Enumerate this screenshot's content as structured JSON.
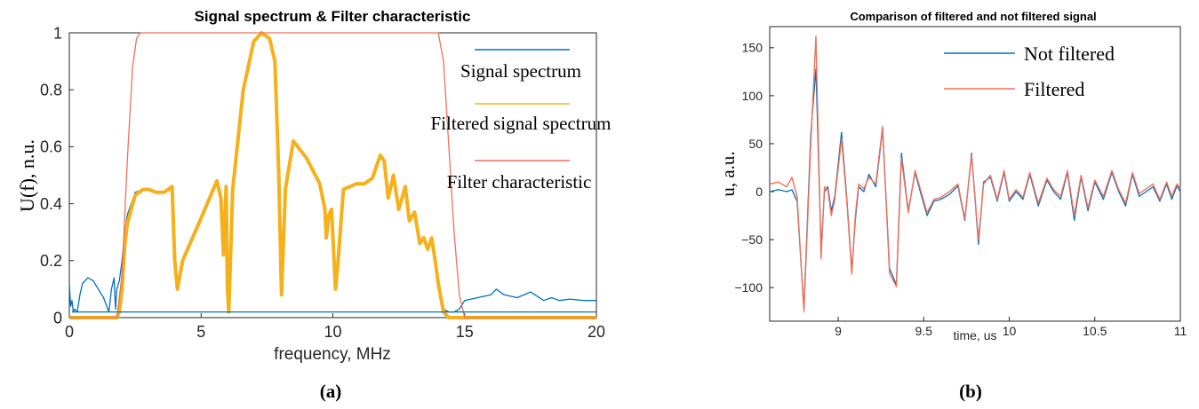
{
  "chart_data": [
    {
      "type": "line",
      "panel_label": "(a)",
      "title": "Signal spectrum & Filter characteristic",
      "xlabel": "frequency, MHz",
      "ylabel": "U(f), n.u.",
      "xlim": [
        0,
        20
      ],
      "ylim": [
        0,
        1
      ],
      "xticks": [
        0,
        5,
        10,
        15,
        20
      ],
      "yticks": [
        0,
        0.2,
        0.4,
        0.6,
        0.8,
        1
      ],
      "ytick_labels": [
        "0",
        "0.2",
        "0.4",
        "0.6",
        "0.8",
        "1"
      ],
      "grid": false,
      "legend_position": "right",
      "colors": {
        "Signal spectrum": "#0072bd",
        "Filtered signal spectrum": "#f5b01a",
        "Filter characteristic": "#f0705a"
      },
      "series": [
        {
          "name": "Signal spectrum",
          "x": [
            0,
            0.05,
            0.1,
            0.15,
            0.2,
            0.3,
            0.4,
            0.5,
            0.7,
            0.9,
            1.1,
            1.3,
            1.5,
            1.6,
            1.7,
            1.75,
            1.8,
            1.9,
            2.0,
            2.1,
            2.2,
            2.5,
            2.8,
            3.0,
            3.3,
            3.6,
            3.9,
            4.0,
            4.1,
            4.3,
            5.0,
            5.6,
            5.75,
            5.85,
            5.95,
            6.0,
            6.05,
            6.2,
            6.6,
            7.0,
            7.3,
            7.6,
            7.8,
            7.95,
            8.05,
            8.2,
            8.5,
            9.0,
            9.5,
            9.7,
            9.75,
            9.85,
            9.95,
            10.1,
            10.2,
            10.4,
            10.9,
            11.2,
            11.5,
            11.8,
            11.95,
            12.1,
            12.3,
            12.5,
            12.75,
            12.9,
            13.1,
            13.3,
            13.45,
            13.6,
            13.75,
            13.9,
            14.0,
            14.2,
            14.4,
            14.6,
            14.8,
            15.0,
            15.5,
            16.0,
            16.2,
            16.5,
            17.0,
            17.5,
            18.0,
            18.3,
            18.6,
            19.0,
            19.5,
            20.0
          ],
          "y": [
            0.12,
            0.04,
            0.06,
            0.02,
            0.03,
            0.02,
            0.08,
            0.12,
            0.14,
            0.13,
            0.1,
            0.07,
            0.02,
            0.1,
            0.14,
            0.03,
            0.1,
            0.13,
            0.2,
            0.3,
            0.36,
            0.44,
            0.45,
            0.45,
            0.44,
            0.44,
            0.46,
            0.2,
            0.1,
            0.2,
            0.35,
            0.48,
            0.42,
            0.22,
            0.46,
            0.1,
            0.02,
            0.45,
            0.8,
            0.97,
            1.0,
            0.98,
            0.9,
            0.5,
            0.08,
            0.45,
            0.62,
            0.56,
            0.47,
            0.38,
            0.28,
            0.36,
            0.38,
            0.1,
            0.2,
            0.45,
            0.47,
            0.47,
            0.49,
            0.57,
            0.55,
            0.42,
            0.5,
            0.38,
            0.46,
            0.34,
            0.37,
            0.26,
            0.28,
            0.24,
            0.28,
            0.19,
            0.12,
            0.03,
            0.02,
            0.02,
            0.03,
            0.06,
            0.07,
            0.08,
            0.1,
            0.08,
            0.07,
            0.09,
            0.06,
            0.07,
            0.06,
            0.065,
            0.06,
            0.06
          ]
        },
        {
          "name": "Filtered signal spectrum",
          "x": [
            0,
            1.6,
            1.8,
            1.9,
            2.0,
            2.1,
            2.2,
            2.5,
            2.8,
            3.0,
            3.3,
            3.6,
            3.9,
            4.0,
            4.1,
            4.3,
            5.0,
            5.6,
            5.75,
            5.85,
            5.95,
            6.0,
            6.05,
            6.2,
            6.6,
            7.0,
            7.3,
            7.6,
            7.8,
            7.95,
            8.05,
            8.2,
            8.5,
            9.0,
            9.5,
            9.7,
            9.75,
            9.85,
            9.95,
            10.1,
            10.2,
            10.4,
            10.9,
            11.2,
            11.5,
            11.8,
            11.95,
            12.1,
            12.3,
            12.5,
            12.75,
            12.9,
            13.1,
            13.3,
            13.45,
            13.6,
            13.75,
            13.9,
            14.0,
            14.2,
            14.4,
            20.0
          ],
          "y": [
            0.0,
            0.0,
            0.0,
            0.02,
            0.1,
            0.25,
            0.33,
            0.43,
            0.45,
            0.45,
            0.44,
            0.44,
            0.46,
            0.2,
            0.1,
            0.2,
            0.35,
            0.48,
            0.42,
            0.22,
            0.46,
            0.1,
            0.02,
            0.45,
            0.8,
            0.97,
            1.0,
            0.98,
            0.9,
            0.5,
            0.08,
            0.45,
            0.62,
            0.56,
            0.47,
            0.38,
            0.28,
            0.36,
            0.38,
            0.1,
            0.2,
            0.45,
            0.47,
            0.47,
            0.49,
            0.57,
            0.55,
            0.42,
            0.5,
            0.38,
            0.46,
            0.34,
            0.37,
            0.26,
            0.28,
            0.24,
            0.28,
            0.19,
            0.12,
            0.02,
            0.0,
            0.0
          ]
        },
        {
          "name": "Filter characteristic",
          "x": [
            0,
            1.8,
            2.0,
            2.2,
            2.4,
            2.55,
            2.7,
            14.0,
            14.2,
            14.4,
            14.6,
            14.8,
            15.0,
            20.0
          ],
          "y": [
            0,
            0,
            0.15,
            0.55,
            0.88,
            0.98,
            1.0,
            1.0,
            0.9,
            0.6,
            0.3,
            0.08,
            0,
            0
          ]
        },
        {
          "name": "Signal spectrum baseline",
          "x": [
            0.1,
            20.0
          ],
          "y": [
            0.02,
            0.02
          ]
        }
      ]
    },
    {
      "type": "line",
      "panel_label": "(b)",
      "title": "Comparison of filtered and not filtered signal",
      "xlabel": "time, us",
      "ylabel": "u, a.u.",
      "xlim": [
        8.6,
        11
      ],
      "ylim": [
        -135,
        172
      ],
      "xticks": [
        9,
        9.5,
        10,
        10.5,
        11
      ],
      "yticks": [
        -100,
        -50,
        0,
        50,
        100,
        150
      ],
      "ytick_labels": [
        "−100",
        "−50",
        "0",
        "50",
        "100",
        "150"
      ],
      "grid": false,
      "legend_position": "top-right",
      "colors": {
        "Not filtered": "#0072bd",
        "Filtered": "#f0705a"
      },
      "series": [
        {
          "name": "Not filtered",
          "x": [
            8.6,
            8.65,
            8.7,
            8.73,
            8.76,
            8.8,
            8.84,
            8.87,
            8.9,
            8.92,
            8.94,
            8.96,
            8.98,
            9.02,
            9.05,
            9.08,
            9.1,
            9.12,
            9.15,
            9.18,
            9.22,
            9.26,
            9.3,
            9.34,
            9.37,
            9.41,
            9.45,
            9.48,
            9.52,
            9.56,
            9.6,
            9.65,
            9.7,
            9.74,
            9.78,
            9.82,
            9.85,
            9.89,
            9.93,
            9.97,
            10.0,
            10.04,
            10.08,
            10.12,
            10.17,
            10.22,
            10.26,
            10.3,
            10.34,
            10.38,
            10.42,
            10.46,
            10.5,
            10.55,
            10.6,
            10.64,
            10.68,
            10.72,
            10.76,
            10.8,
            10.84,
            10.88,
            10.92,
            10.95,
            10.98,
            11.0
          ],
          "y": [
            0,
            2,
            0,
            2,
            -10,
            -122,
            60,
            128,
            -60,
            0,
            5,
            -20,
            -5,
            62,
            -5,
            -82,
            -30,
            5,
            0,
            18,
            5,
            65,
            -80,
            -97,
            40,
            -20,
            20,
            0,
            -25,
            -10,
            -8,
            -3,
            6,
            -30,
            40,
            -55,
            10,
            15,
            -10,
            20,
            -10,
            0,
            -8,
            18,
            -15,
            12,
            0,
            -8,
            20,
            -30,
            15,
            -20,
            10,
            -8,
            20,
            0,
            -15,
            18,
            -5,
            0,
            5,
            -10,
            8,
            -8,
            6,
            0
          ]
        },
        {
          "name": "Filtered",
          "x": [
            8.6,
            8.65,
            8.7,
            8.73,
            8.76,
            8.8,
            8.84,
            8.87,
            8.9,
            8.92,
            8.94,
            8.96,
            8.98,
            9.02,
            9.05,
            9.08,
            9.1,
            9.12,
            9.15,
            9.18,
            9.22,
            9.26,
            9.3,
            9.34,
            9.37,
            9.41,
            9.45,
            9.48,
            9.52,
            9.56,
            9.6,
            9.65,
            9.7,
            9.74,
            9.78,
            9.82,
            9.85,
            9.89,
            9.93,
            9.97,
            10.0,
            10.04,
            10.08,
            10.12,
            10.17,
            10.22,
            10.26,
            10.3,
            10.34,
            10.38,
            10.42,
            10.46,
            10.5,
            10.55,
            10.6,
            10.64,
            10.68,
            10.72,
            10.76,
            10.8,
            10.84,
            10.88,
            10.92,
            10.95,
            10.98,
            11.0
          ],
          "y": [
            8,
            10,
            5,
            15,
            -5,
            -125,
            50,
            162,
            -70,
            5,
            2,
            -25,
            -8,
            55,
            -8,
            -86,
            -25,
            8,
            3,
            15,
            8,
            68,
            -85,
            -99,
            35,
            -22,
            22,
            3,
            -22,
            -8,
            -6,
            0,
            8,
            -28,
            38,
            -50,
            8,
            17,
            -8,
            22,
            -8,
            2,
            -6,
            20,
            -12,
            14,
            2,
            -5,
            22,
            -25,
            17,
            -17,
            12,
            -5,
            22,
            2,
            -12,
            20,
            -2,
            3,
            8,
            -8,
            10,
            -5,
            8,
            3
          ]
        }
      ]
    }
  ]
}
